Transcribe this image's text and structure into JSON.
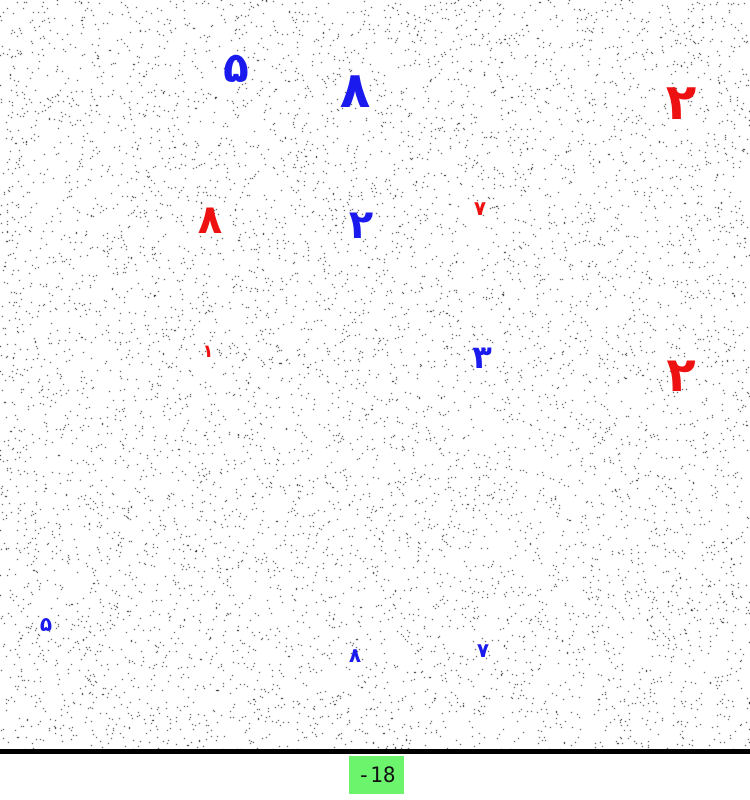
{
  "colors": {
    "red": "#ee1111",
    "blue": "#1a1aee",
    "score_bg": "#6cf56c"
  },
  "digits": [
    {
      "text": "۵",
      "color": "blue"
    },
    {
      "text": "۸",
      "color": "blue"
    },
    {
      "text": "۲",
      "color": "red"
    },
    {
      "text": "۸",
      "color": "red"
    },
    {
      "text": "۲",
      "color": "blue"
    },
    {
      "text": "۷",
      "color": "red"
    },
    {
      "text": "۱",
      "color": "red"
    },
    {
      "text": "۳",
      "color": "blue"
    },
    {
      "text": "۲",
      "color": "red"
    },
    {
      "text": "۵",
      "color": "blue"
    },
    {
      "text": "۸",
      "color": "blue"
    },
    {
      "text": "۷",
      "color": "blue"
    }
  ],
  "score": {
    "value": "-18"
  }
}
